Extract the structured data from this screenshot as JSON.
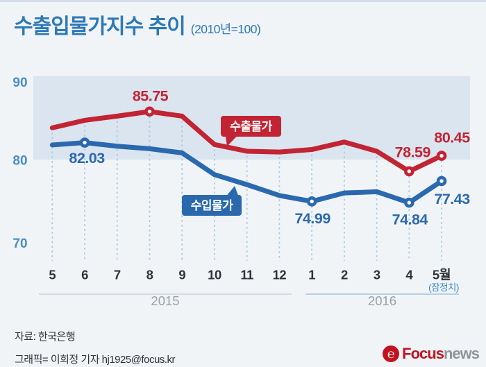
{
  "header": {
    "title": "수출입물가지수 추이",
    "subtitle": "(2010년=100)"
  },
  "chart_data": {
    "type": "line",
    "title": "수출입물가지수 추이",
    "subtitle": "(2010년=100)",
    "categories": [
      "5",
      "6",
      "7",
      "8",
      "9",
      "10",
      "11",
      "12",
      "1",
      "2",
      "3",
      "4",
      "5월"
    ],
    "x_groups": [
      {
        "label": "2015",
        "from": 0,
        "to": 7
      },
      {
        "label": "2016",
        "from": 8,
        "to": 12
      }
    ],
    "x_footnote": "(잠정치)",
    "ylim": [
      70,
      90
    ],
    "yticks": [
      "90",
      "80",
      "70"
    ],
    "ytick_values": [
      90,
      80,
      70
    ],
    "grid": "vertical-dashed",
    "band": {
      "from": 80,
      "to": 90
    },
    "legend_position": "inline-bubbles",
    "series": [
      {
        "name": "수출물가",
        "color": "#c22433",
        "values": [
          83.8,
          84.7,
          85.2,
          85.75,
          85.2,
          81.8,
          81.0,
          80.9,
          81.2,
          82.1,
          81.0,
          78.59,
          80.45
        ],
        "labeled_points": [
          {
            "index": 3,
            "label": "85.75"
          },
          {
            "index": 11,
            "label": "78.59"
          },
          {
            "index": 12,
            "label": "80.45"
          }
        ]
      },
      {
        "name": "수입물가",
        "color": "#2b69ae",
        "values": [
          81.75,
          82.03,
          81.6,
          81.3,
          80.8,
          78.2,
          77.0,
          75.7,
          74.99,
          76.0,
          76.15,
          74.84,
          77.43
        ],
        "labeled_points": [
          {
            "index": 1,
            "label": "82.03"
          },
          {
            "index": 8,
            "label": "74.99"
          },
          {
            "index": 11,
            "label": "74.84"
          },
          {
            "index": 12,
            "label": "77.43"
          }
        ]
      }
    ]
  },
  "footer": {
    "source": "자료: 한국은행",
    "credit": "그래픽= 이희정 기자 hj1925@focus.kr"
  },
  "logo": {
    "glyph": "℮",
    "brand": "Focus",
    "suffix": "news"
  },
  "colors": {
    "title_blue": "#2d79b6",
    "axis_blue": "#4a8ec2",
    "footnote_blue": "#3c87c3",
    "export_red": "#c22433",
    "import_blue": "#2b69ae",
    "band_fill": "#dbe5ef",
    "grid_dash": "#a4cbe4",
    "month_text": "#2f3338",
    "year_text": "#9aa1a8",
    "year_line_2015": "#c7ccd3",
    "year_line_2016": "#8fb7d9",
    "top_bar": "#d4dde7",
    "logo_red": "#c0131f",
    "logo_gray": "#8d949b"
  }
}
